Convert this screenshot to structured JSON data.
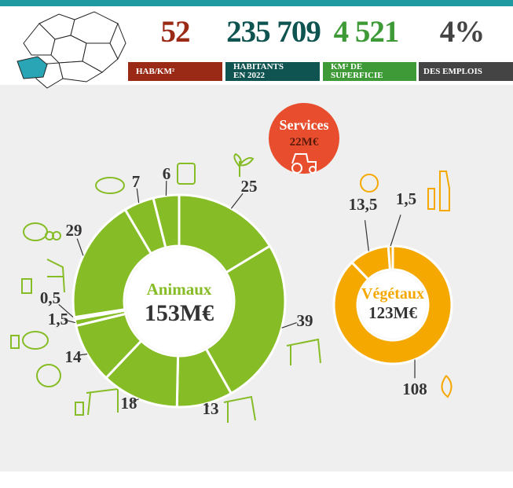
{
  "stats": [
    {
      "value": "52",
      "label": "HAB/KM²"
    },
    {
      "value": "235 709",
      "label": "HABITANTS EN 2022"
    },
    {
      "value": "4 521",
      "label": "KM² DE SUPERFICIE"
    },
    {
      "value": "4%",
      "label": "DES EMPLOIS"
    }
  ],
  "services": {
    "title": "Services",
    "amount": "22M€"
  },
  "chart_data": [
    {
      "type": "donut",
      "title": "Animaux",
      "total_label": "153M€",
      "color": "#86bc25",
      "values": [
        25,
        39,
        13,
        18,
        14,
        1.5,
        0.5,
        29,
        7,
        6
      ],
      "value_labels": [
        "25",
        "39",
        "13",
        "18",
        "14",
        "1,5",
        "0,5",
        "29",
        "7",
        "6"
      ]
    },
    {
      "type": "donut",
      "title": "Végétaux",
      "total_label": "123M€",
      "color": "#f5a800",
      "values": [
        108,
        13.5,
        1.5
      ],
      "value_labels": [
        "108",
        "13,5",
        "1,5"
      ]
    }
  ]
}
